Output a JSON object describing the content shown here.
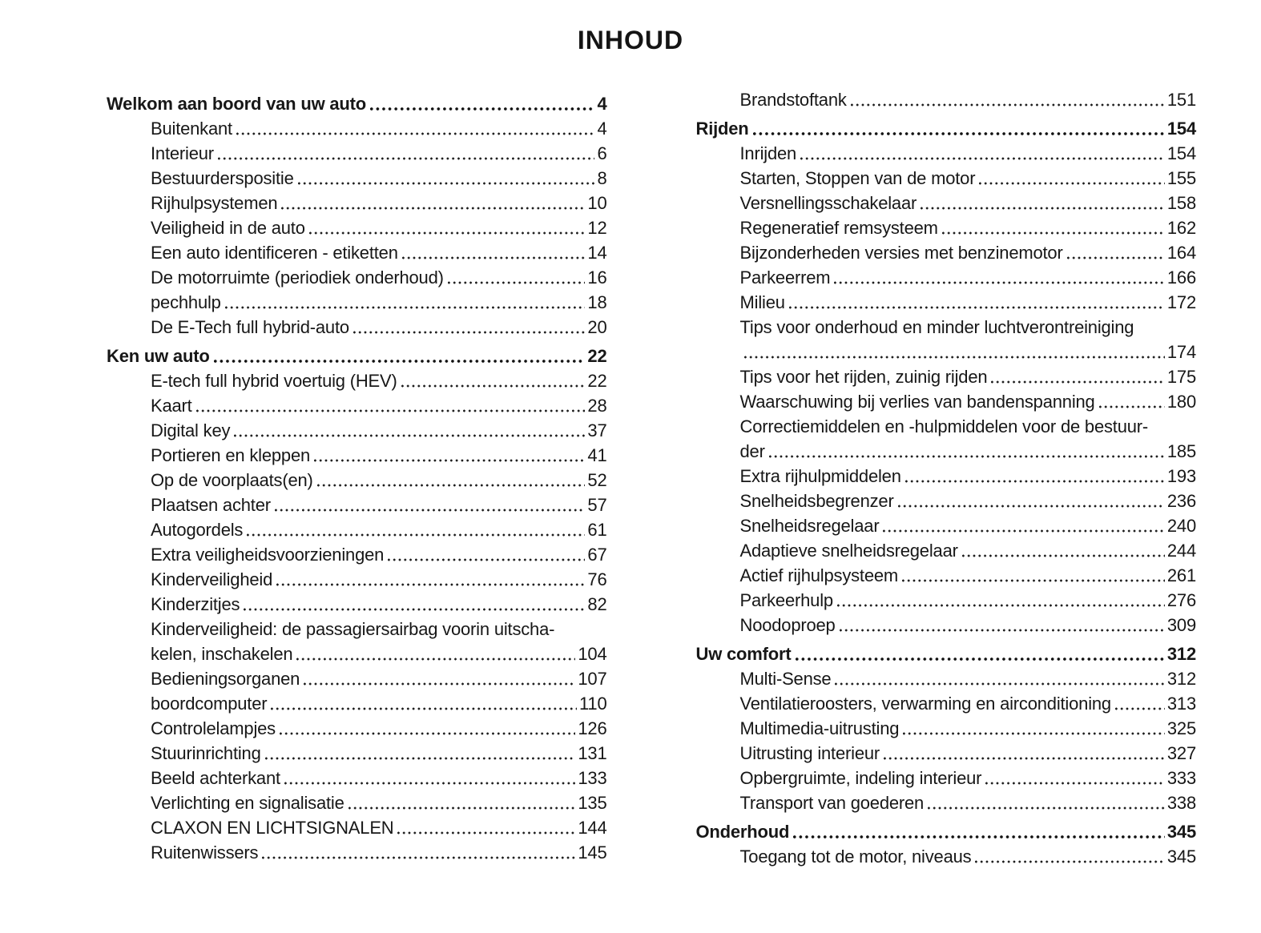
{
  "page_title": "INHOUD",
  "toc": {
    "columns": [
      {
        "entries": [
          {
            "label": "Welkom aan boord van uw auto",
            "page": "4",
            "bold": true
          },
          {
            "label": "Buitenkant",
            "page": "4"
          },
          {
            "label": "Interieur",
            "page": "6"
          },
          {
            "label": "Bestuurderspositie",
            "page": "8"
          },
          {
            "label": "Rijhulpsystemen",
            "page": "10"
          },
          {
            "label": "Veiligheid in de auto",
            "page": "12"
          },
          {
            "label": "Een auto identificeren - etiketten",
            "page": "14"
          },
          {
            "label": "De motorruimte (periodiek onderhoud)",
            "page": "16"
          },
          {
            "label": "pechhulp",
            "page": "18"
          },
          {
            "label": "De E-Tech full hybrid-auto",
            "page": "20"
          },
          {
            "label": "Ken uw auto",
            "page": "22",
            "bold": true
          },
          {
            "label": "E-tech full hybrid voertuig (HEV)",
            "page": "22"
          },
          {
            "label": "Kaart",
            "page": "28"
          },
          {
            "label": "Digital key",
            "page": "37"
          },
          {
            "label": "Portieren en kleppen",
            "page": "41"
          },
          {
            "label": "Op de voorplaats(en)",
            "page": "52"
          },
          {
            "label": "Plaatsen achter",
            "page": "57"
          },
          {
            "label": "Autogordels",
            "page": "61"
          },
          {
            "label": "Extra veiligheidsvoorzieningen",
            "page": "67"
          },
          {
            "label": "Kinderveiligheid",
            "page": "76"
          },
          {
            "label": "Kinderzitjes",
            "page": "82"
          },
          {
            "label": "Kinderveiligheid: de passagiersairbag voorin uitscha-",
            "line2": "kelen, inschakelen",
            "page": "104"
          },
          {
            "label": "Bedieningsorganen",
            "page": "107"
          },
          {
            "label": "boordcomputer",
            "page": "110"
          },
          {
            "label": "Controlelampjes",
            "page": "126"
          },
          {
            "label": "Stuurinrichting",
            "page": "131"
          },
          {
            "label": "Beeld achterkant",
            "page": "133"
          },
          {
            "label": "Verlichting en signalisatie",
            "page": "135"
          },
          {
            "label": "CLAXON EN LICHTSIGNALEN",
            "page": "144"
          },
          {
            "label": "Ruitenwissers",
            "page": "145"
          }
        ]
      },
      {
        "entries": [
          {
            "label": "Brandstoftank",
            "page": "151"
          },
          {
            "label": "Rijden",
            "page": "154",
            "bold": true
          },
          {
            "label": "Inrijden",
            "page": "154"
          },
          {
            "label": "Starten, Stoppen van de motor",
            "page": "155"
          },
          {
            "label": "Versnellingsschakelaar",
            "page": "158"
          },
          {
            "label": "Regeneratief remsysteem",
            "page": "162"
          },
          {
            "label": "Bijzonderheden versies met benzinemotor",
            "page": "164"
          },
          {
            "label": "Parkeerrem",
            "page": "166"
          },
          {
            "label": "Milieu",
            "page": "172"
          },
          {
            "label": "Tips voor onderhoud en minder luchtverontreiniging",
            "line2": "",
            "page": "174"
          },
          {
            "label": "Tips voor het rijden, zuinig rijden",
            "page": "175"
          },
          {
            "label": "Waarschuwing bij verlies van bandenspanning",
            "page": "180"
          },
          {
            "label": "Correctiemiddelen en -hulpmiddelen voor de bestuur-",
            "line2": "der",
            "page": "185"
          },
          {
            "label": "Extra rijhulpmiddelen",
            "page": "193"
          },
          {
            "label": "Snelheidsbegrenzer",
            "page": "236"
          },
          {
            "label": "Snelheidsregelaar",
            "page": "240"
          },
          {
            "label": "Adaptieve snelheidsregelaar",
            "page": "244"
          },
          {
            "label": "Actief rijhulpsysteem",
            "page": "261"
          },
          {
            "label": "Parkeerhulp",
            "page": "276"
          },
          {
            "label": "Noodoproep",
            "page": "309"
          },
          {
            "label": "Uw comfort",
            "page": "312",
            "bold": true
          },
          {
            "label": "Multi-Sense",
            "page": "312"
          },
          {
            "label": "Ventilatieroosters, verwarming en airconditioning",
            "page": "313"
          },
          {
            "label": "Multimedia-uitrusting",
            "page": "325"
          },
          {
            "label": "Uitrusting interieur",
            "page": "327"
          },
          {
            "label": "Opbergruimte, indeling interieur",
            "page": "333"
          },
          {
            "label": "Transport van goederen",
            "page": "338"
          },
          {
            "label": "Onderhoud",
            "page": "345",
            "bold": true
          },
          {
            "label": "Toegang tot de motor, niveaus",
            "page": "345"
          }
        ]
      }
    ]
  }
}
